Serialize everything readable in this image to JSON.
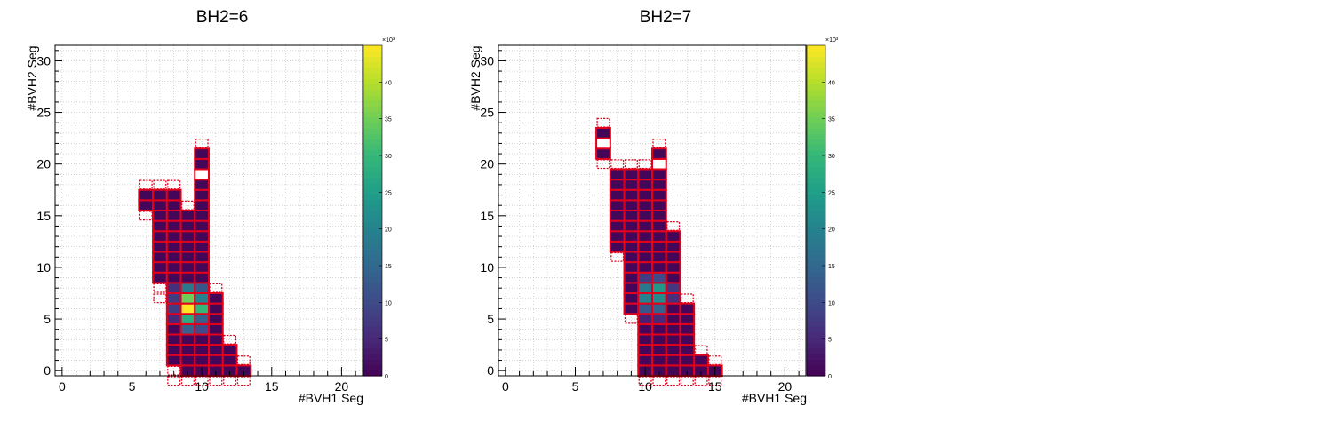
{
  "colors": {
    "box_outline": "#e2001a",
    "grid": "#bcbcbc",
    "empty_cell": "#ffffff"
  },
  "chart_data": [
    {
      "type": "heatmap",
      "title": "BH2=6",
      "xlabel": "#BVH1 Seg",
      "ylabel": "#BVH2 Seg",
      "xlim": [
        -0.5,
        21.5
      ],
      "ylim": [
        -0.5,
        31.5
      ],
      "xticks": [
        "0",
        "5",
        "10",
        "15",
        "20"
      ],
      "yticks": [
        "0",
        "5",
        "10",
        "15",
        "20",
        "25",
        "30"
      ],
      "colorbar": {
        "min": 0,
        "max": 45,
        "ticks": [
          "0",
          "5",
          "10",
          "15",
          "20",
          "25",
          "30",
          "35",
          "40"
        ],
        "exponent": "×10³"
      },
      "columns": [
        {
          "x": 6,
          "y0": 16,
          "y1": 17,
          "outline_y0": 15,
          "outline_y1": 18
        },
        {
          "x": 7,
          "y0": 9,
          "y1": 17,
          "outline_y0": 7,
          "outline_y1": 18
        },
        {
          "x": 8,
          "y0": 1,
          "y1": 17,
          "outline_y0": -1,
          "outline_y1": 18
        },
        {
          "x": 9,
          "y0": 0,
          "y1": 15,
          "outline_y0": -1,
          "outline_y1": 16
        },
        {
          "x": 10,
          "y0": 0,
          "y1": 21,
          "outline_y0": -1,
          "outline_y1": 22
        },
        {
          "x": 11,
          "y0": 0,
          "y1": 7,
          "outline_y0": -1,
          "outline_y1": 8
        },
        {
          "x": 12,
          "y0": 0,
          "y1": 2,
          "outline_y0": -1,
          "outline_y1": 3
        },
        {
          "x": 13,
          "y0": 0,
          "y1": 0,
          "outline_y0": -1,
          "outline_y1": 1
        }
      ],
      "empty_cells": [
        [
          10,
          19
        ],
        [
          9,
          19
        ],
        [
          9,
          20
        ],
        [
          9,
          21
        ]
      ],
      "hot_cells": [
        {
          "x": 9,
          "y": 6,
          "value": 45
        },
        {
          "x": 9,
          "y": 7,
          "value": 35
        },
        {
          "x": 9,
          "y": 5,
          "value": 28
        },
        {
          "x": 10,
          "y": 6,
          "value": 30
        },
        {
          "x": 10,
          "y": 7,
          "value": 20
        },
        {
          "x": 9,
          "y": 8,
          "value": 18
        },
        {
          "x": 10,
          "y": 5,
          "value": 14
        },
        {
          "x": 9,
          "y": 4,
          "value": 14
        },
        {
          "x": 10,
          "y": 8,
          "value": 12
        },
        {
          "x": 10,
          "y": 4,
          "value": 10
        },
        {
          "x": 8,
          "y": 7,
          "value": 8
        },
        {
          "x": 8,
          "y": 6,
          "value": 8
        },
        {
          "x": 8,
          "y": 8,
          "value": 6
        },
        {
          "x": 8,
          "y": 5,
          "value": 5
        }
      ]
    },
    {
      "type": "heatmap",
      "title": "BH2=7",
      "xlabel": "#BVH1 Seg",
      "ylabel": "#BVH2 Seg",
      "xlim": [
        -0.5,
        21.5
      ],
      "ylim": [
        -0.5,
        31.5
      ],
      "xticks": [
        "0",
        "5",
        "10",
        "15",
        "20"
      ],
      "yticks": [
        "0",
        "5",
        "10",
        "15",
        "20",
        "25",
        "30"
      ],
      "colorbar": {
        "min": 0,
        "max": 45,
        "ticks": [
          "0",
          "5",
          "10",
          "15",
          "20",
          "25",
          "30",
          "35",
          "40"
        ],
        "exponent": "×10³"
      },
      "columns": [
        {
          "x": 7,
          "y0": 21,
          "y1": 23,
          "outline_y0": 20,
          "outline_y1": 24
        },
        {
          "x": 8,
          "y0": 12,
          "y1": 19,
          "outline_y0": 11,
          "outline_y1": 20
        },
        {
          "x": 9,
          "y0": 6,
          "y1": 19,
          "outline_y0": 5,
          "outline_y1": 20
        },
        {
          "x": 10,
          "y0": 0,
          "y1": 19,
          "outline_y0": -1,
          "outline_y1": 20
        },
        {
          "x": 11,
          "y0": 0,
          "y1": 21,
          "outline_y0": -1,
          "outline_y1": 22
        },
        {
          "x": 12,
          "y0": 0,
          "y1": 13,
          "outline_y0": -1,
          "outline_y1": 14
        },
        {
          "x": 13,
          "y0": 0,
          "y1": 6,
          "outline_y0": -1,
          "outline_y1": 7
        },
        {
          "x": 14,
          "y0": 0,
          "y1": 1,
          "outline_y0": -1,
          "outline_y1": 2
        },
        {
          "x": 15,
          "y0": 0,
          "y1": 0,
          "outline_y0": -1,
          "outline_y1": 1
        }
      ],
      "empty_cells": [
        [
          7,
          22
        ],
        [
          11,
          20
        ]
      ],
      "hot_cells": [
        {
          "x": 11,
          "y": 7,
          "value": 22
        },
        {
          "x": 10,
          "y": 7,
          "value": 20
        },
        {
          "x": 11,
          "y": 8,
          "value": 24
        },
        {
          "x": 10,
          "y": 8,
          "value": 18
        },
        {
          "x": 11,
          "y": 6,
          "value": 14
        },
        {
          "x": 10,
          "y": 6,
          "value": 12
        },
        {
          "x": 11,
          "y": 9,
          "value": 10
        },
        {
          "x": 10,
          "y": 9,
          "value": 8
        },
        {
          "x": 12,
          "y": 8,
          "value": 7
        },
        {
          "x": 12,
          "y": 7,
          "value": 6
        },
        {
          "x": 11,
          "y": 5,
          "value": 5
        },
        {
          "x": 10,
          "y": 5,
          "value": 4
        }
      ]
    }
  ]
}
